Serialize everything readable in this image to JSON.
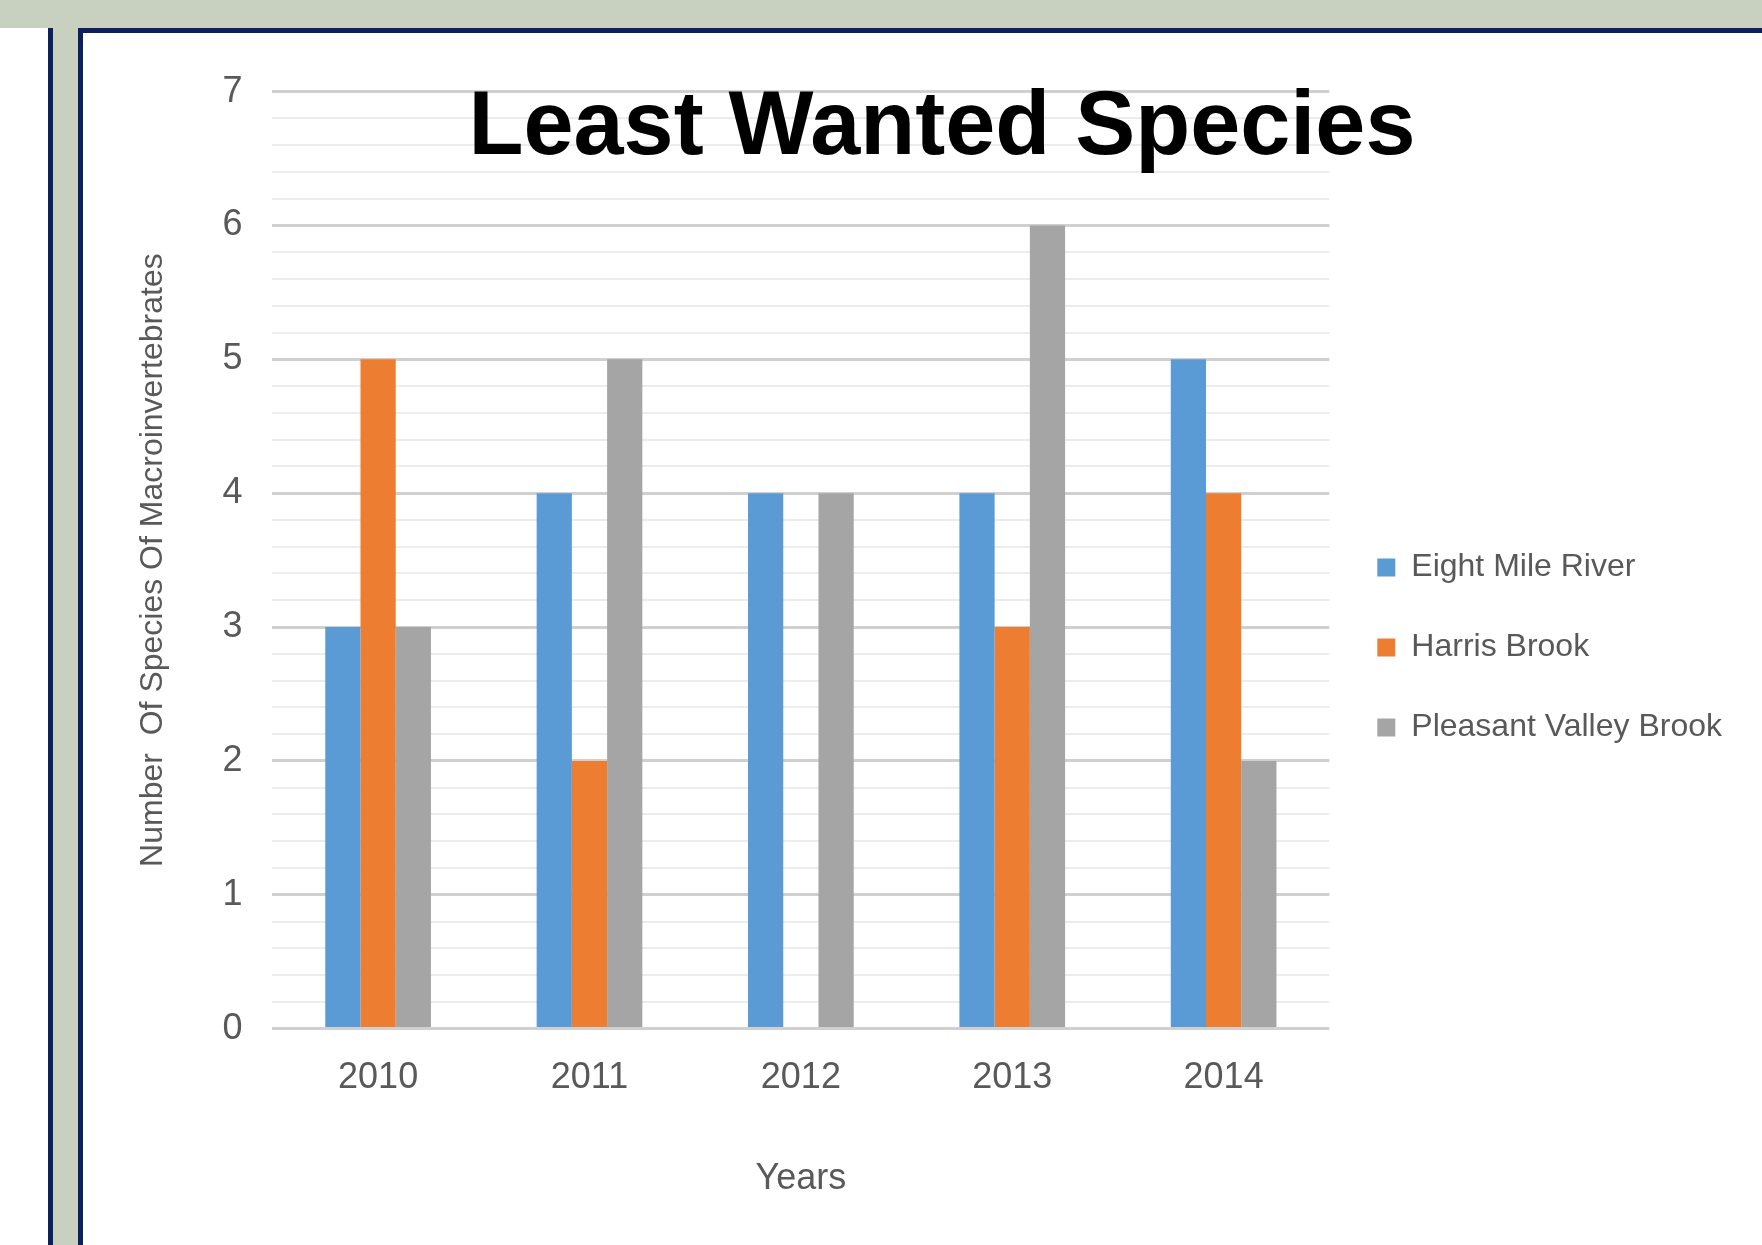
{
  "chart_data": {
    "type": "bar",
    "title": "Least Wanted Species",
    "xlabel": "Years",
    "ylabel": "Number  Of Species Of Macroinvertebrates",
    "categories": [
      "2010",
      "2011",
      "2012",
      "2013",
      "2014"
    ],
    "series": [
      {
        "name": "Eight Mile River",
        "color": "#5b9bd5",
        "values": [
          3,
          4,
          4,
          4,
          5
        ]
      },
      {
        "name": "Harris Brook",
        "color": "#ed7d31",
        "values": [
          5,
          2,
          0,
          3,
          4
        ]
      },
      {
        "name": "Pleasant Valley Brook",
        "color": "#a5a5a5",
        "values": [
          3,
          5,
          4,
          6,
          2
        ]
      }
    ],
    "ylim": [
      0,
      7
    ],
    "yticks": [
      0,
      {
        "value": 0.2,
        "label": null
      },
      {
        "value": 0.4,
        "label": null
      },
      {
        "value": 0.6,
        "label": null
      },
      {
        "value": 0.8,
        "label": null
      },
      1,
      {
        "value": 1.2,
        "label": null
      },
      {
        "value": 1.4,
        "label": null
      },
      {
        "value": 1.6,
        "label": null
      },
      {
        "value": 1.8,
        "label": null
      },
      2,
      {
        "value": 2.2,
        "label": null
      },
      {
        "value": 2.4,
        "label": null
      },
      {
        "value": 2.6,
        "label": null
      },
      {
        "value": 2.8,
        "label": null
      },
      3,
      {
        "value": 3.2,
        "label": null
      },
      {
        "value": 3.4,
        "label": null
      },
      {
        "value": 3.6,
        "label": null
      },
      {
        "value": 3.8,
        "label": null
      },
      4,
      {
        "value": 4.2,
        "label": null
      },
      {
        "value": 4.4,
        "label": null
      },
      {
        "value": 4.6,
        "label": null
      },
      {
        "value": 4.8,
        "label": null
      },
      5,
      {
        "value": 5.2,
        "label": null
      },
      {
        "value": 5.4,
        "label": null
      },
      {
        "value": 5.6,
        "label": null
      },
      {
        "value": 5.8,
        "label": null
      },
      6,
      {
        "value": 6.2,
        "label": null
      },
      {
        "value": 6.4,
        "label": null
      },
      {
        "value": 6.6,
        "label": null
      },
      {
        "value": 6.8,
        "label": null
      },
      7
    ],
    "grid": "y",
    "legend": "right"
  }
}
